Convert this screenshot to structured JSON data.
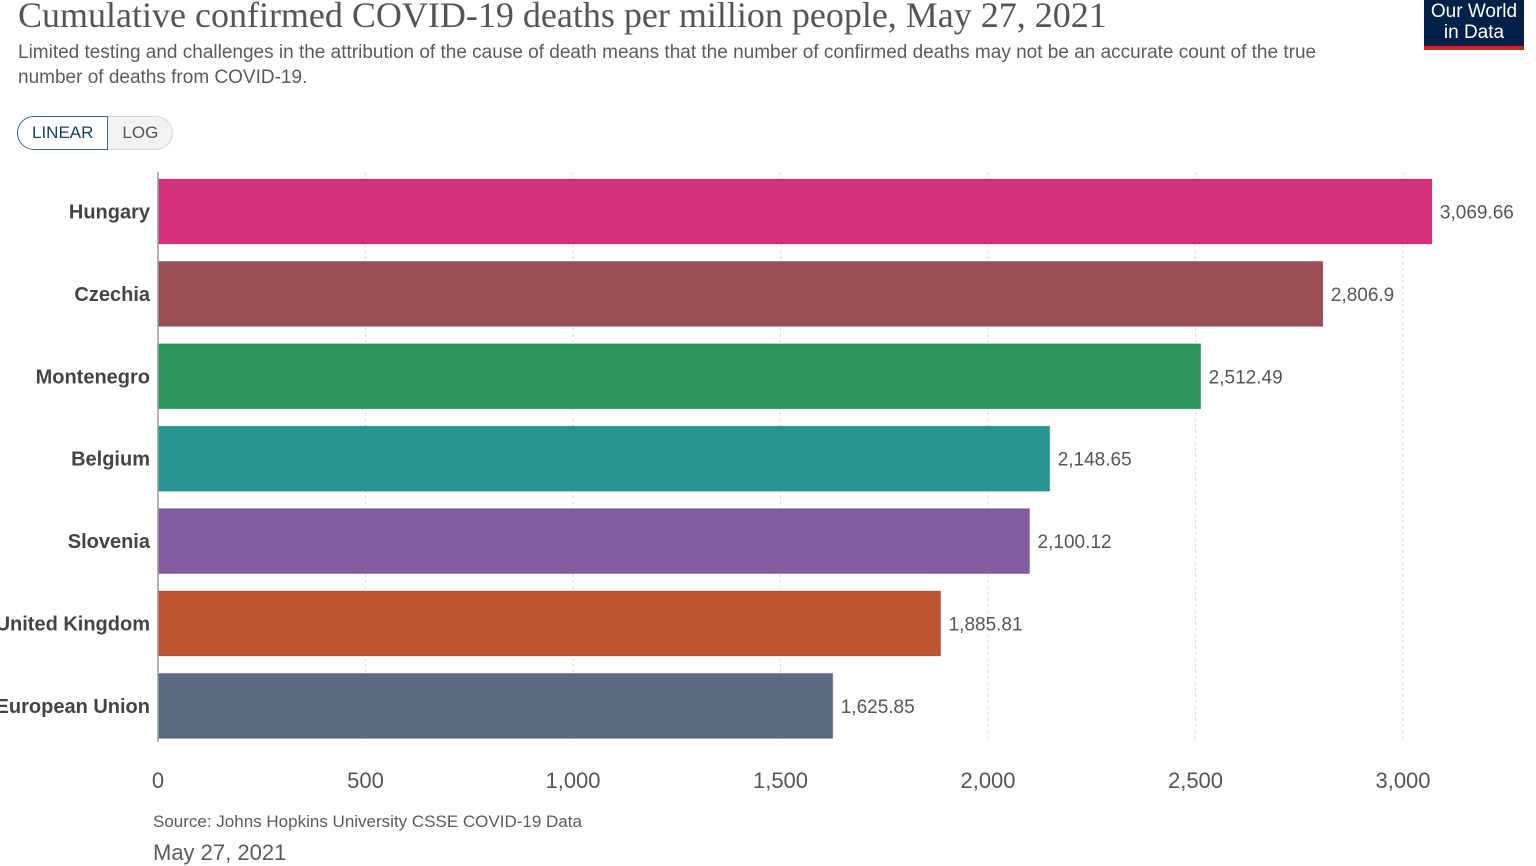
{
  "header": {
    "title": "Cumulative confirmed COVID-19 deaths per million people, May 27, 2021",
    "subtitle": "Limited testing and challenges in the attribution of the cause of death means that the number of confirmed deaths may not be an accurate count of the true number of deaths from COVID-19."
  },
  "logo": {
    "line1": "Our World",
    "line2": "in Data"
  },
  "scale_toggle": {
    "linear_label": "LINEAR",
    "log_label": "LOG",
    "selected": "LINEAR"
  },
  "footer": {
    "source": "Source: Johns Hopkins University CSSE COVID-19 Data",
    "date": "May 27, 2021"
  },
  "colors": {
    "Hungary": "#d6307c",
    "Czechia": "#9a4f54",
    "Montenegro": "#2a945a",
    "Belgium": "#26958f",
    "Slovenia": "#825ba1",
    "United Kingdom": "#bd5330",
    "European Union": "#5a6a80"
  },
  "chart_data": {
    "type": "bar",
    "orientation": "horizontal",
    "title": "Cumulative confirmed COVID-19 deaths per million people, May 27, 2021",
    "categories": [
      "Hungary",
      "Czechia",
      "Montenegro",
      "Belgium",
      "Slovenia",
      "United Kingdom",
      "European Union"
    ],
    "values": [
      3069.66,
      2806.9,
      2512.49,
      2148.65,
      2100.12,
      1885.81,
      1625.85
    ],
    "value_labels": [
      "3,069.66",
      "2,806.9",
      "2,512.49",
      "2,148.65",
      "2,100.12",
      "1,885.81",
      "1,625.85"
    ],
    "xlim": [
      0,
      3000
    ],
    "ticks": [
      0,
      500,
      1000,
      1500,
      2000,
      2500,
      3000
    ],
    "tick_labels": [
      "0",
      "500",
      "1,000",
      "1,500",
      "2,000",
      "2,500",
      "3,000"
    ],
    "xlabel": "",
    "ylabel": "",
    "grid": true
  }
}
